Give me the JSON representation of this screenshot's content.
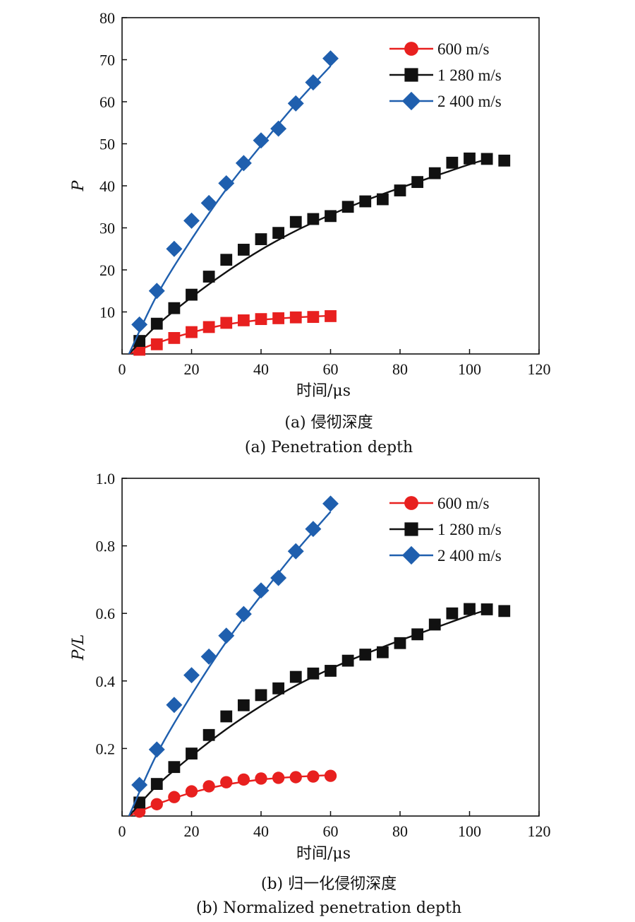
{
  "chart_data": [
    {
      "type": "scatter",
      "panel": "a",
      "xlabel": "时间/μs",
      "ylabel": "P",
      "xlim": [
        0,
        120
      ],
      "ylim": [
        0,
        80
      ],
      "xticks": [
        0,
        20,
        40,
        60,
        80,
        100,
        120
      ],
      "yticks": [
        10,
        20,
        30,
        40,
        50,
        60,
        70,
        80
      ],
      "grid": false,
      "legend_position": "top-right",
      "caption_cn": "(a) 侵彻深度",
      "caption_en": "(a) Penetration depth",
      "series": [
        {
          "name": "600 m/s",
          "color": "#e8201f",
          "legend_marker": "circle",
          "marker": "square",
          "x": [
            5,
            10,
            15,
            20,
            25,
            30,
            35,
            40,
            45,
            50,
            55,
            60
          ],
          "y": [
            1.0,
            2.3,
            3.8,
            5.2,
            6.4,
            7.4,
            8.0,
            8.3,
            8.5,
            8.7,
            8.8,
            9.0
          ],
          "fit_x": [
            2,
            10,
            20,
            30,
            40,
            50,
            60
          ],
          "fit_y": [
            0,
            2.6,
            5.1,
            7.0,
            8.1,
            8.7,
            9.1
          ]
        },
        {
          "name": "1 280 m/s",
          "color": "#111111",
          "legend_marker": "square",
          "marker": "square",
          "x": [
            5,
            10,
            15,
            20,
            25,
            30,
            35,
            40,
            45,
            50,
            55,
            60,
            65,
            70,
            75,
            80,
            85,
            90,
            95,
            100,
            105,
            110
          ],
          "y": [
            3.1,
            7.2,
            10.9,
            14.1,
            18.4,
            22.4,
            24.8,
            27.3,
            28.8,
            31.4,
            32.1,
            32.8,
            35.0,
            36.3,
            36.8,
            38.9,
            40.9,
            43.0,
            45.5,
            46.5,
            46.4,
            46.0
          ],
          "fit_x": [
            2,
            10,
            20,
            30,
            40,
            50,
            60,
            70,
            80,
            90,
            100,
            105
          ],
          "fit_y": [
            0,
            6.8,
            13.5,
            19.5,
            24.8,
            29.3,
            33.1,
            36.5,
            39.5,
            42.3,
            45.1,
            46.3
          ]
        },
        {
          "name": "2 400 m/s",
          "color": "#1f5fae",
          "legend_marker": "diamond",
          "marker": "diamond",
          "x": [
            5,
            10,
            15,
            20,
            25,
            30,
            35,
            40,
            45,
            50,
            55,
            60
          ],
          "y": [
            7.0,
            15.0,
            25.0,
            31.7,
            35.9,
            40.6,
            45.4,
            50.8,
            53.6,
            59.6,
            64.6,
            70.3
          ],
          "fit_x": [
            2,
            10,
            20,
            30,
            40,
            50,
            60
          ],
          "fit_y": [
            0,
            13.9,
            27.3,
            39.2,
            49.6,
            59.5,
            68.5
          ]
        }
      ]
    },
    {
      "type": "scatter",
      "panel": "b",
      "xlabel": "时间/μs",
      "ylabel": "P/L",
      "xlim": [
        0,
        120
      ],
      "ylim": [
        0,
        1.0
      ],
      "xticks": [
        0,
        20,
        40,
        60,
        80,
        100,
        120
      ],
      "yticks": [
        0.2,
        0.4,
        0.6,
        0.8,
        1.0
      ],
      "grid": false,
      "legend_position": "top-right",
      "caption_cn": "(b) 归一化侵彻深度",
      "caption_en": "(b) Normalized penetration depth",
      "series": [
        {
          "name": "600 m/s",
          "color": "#e8201f",
          "legend_marker": "circle",
          "marker": "circle",
          "x": [
            5,
            10,
            15,
            20,
            25,
            30,
            35,
            40,
            45,
            50,
            55,
            60
          ],
          "y": [
            0.013,
            0.035,
            0.056,
            0.073,
            0.088,
            0.1,
            0.108,
            0.111,
            0.113,
            0.115,
            0.117,
            0.119
          ],
          "fit_x": [
            2,
            10,
            20,
            30,
            40,
            50,
            60
          ],
          "fit_y": [
            0,
            0.035,
            0.069,
            0.093,
            0.108,
            0.116,
            0.121
          ]
        },
        {
          "name": "1 280 m/s",
          "color": "#111111",
          "legend_marker": "square",
          "marker": "square",
          "x": [
            5,
            10,
            15,
            20,
            25,
            30,
            35,
            40,
            45,
            50,
            55,
            60,
            65,
            70,
            75,
            80,
            85,
            90,
            95,
            100,
            105,
            110
          ],
          "y": [
            0.04,
            0.095,
            0.145,
            0.185,
            0.24,
            0.295,
            0.328,
            0.358,
            0.378,
            0.412,
            0.422,
            0.43,
            0.46,
            0.478,
            0.485,
            0.512,
            0.538,
            0.567,
            0.6,
            0.613,
            0.612,
            0.607
          ],
          "fit_x": [
            2,
            10,
            20,
            30,
            40,
            50,
            60,
            70,
            80,
            90,
            100,
            105
          ],
          "fit_y": [
            0,
            0.09,
            0.178,
            0.257,
            0.326,
            0.386,
            0.436,
            0.48,
            0.52,
            0.557,
            0.594,
            0.61
          ]
        },
        {
          "name": "2 400 m/s",
          "color": "#1f5fae",
          "legend_marker": "diamond",
          "marker": "diamond",
          "x": [
            5,
            10,
            15,
            20,
            25,
            30,
            35,
            40,
            45,
            50,
            55,
            60
          ],
          "y": [
            0.092,
            0.197,
            0.329,
            0.417,
            0.472,
            0.534,
            0.598,
            0.668,
            0.705,
            0.784,
            0.85,
            0.925
          ],
          "fit_x": [
            2,
            10,
            20,
            30,
            40,
            50,
            60
          ],
          "fit_y": [
            0,
            0.183,
            0.359,
            0.516,
            0.653,
            0.783,
            0.901
          ]
        }
      ]
    }
  ]
}
